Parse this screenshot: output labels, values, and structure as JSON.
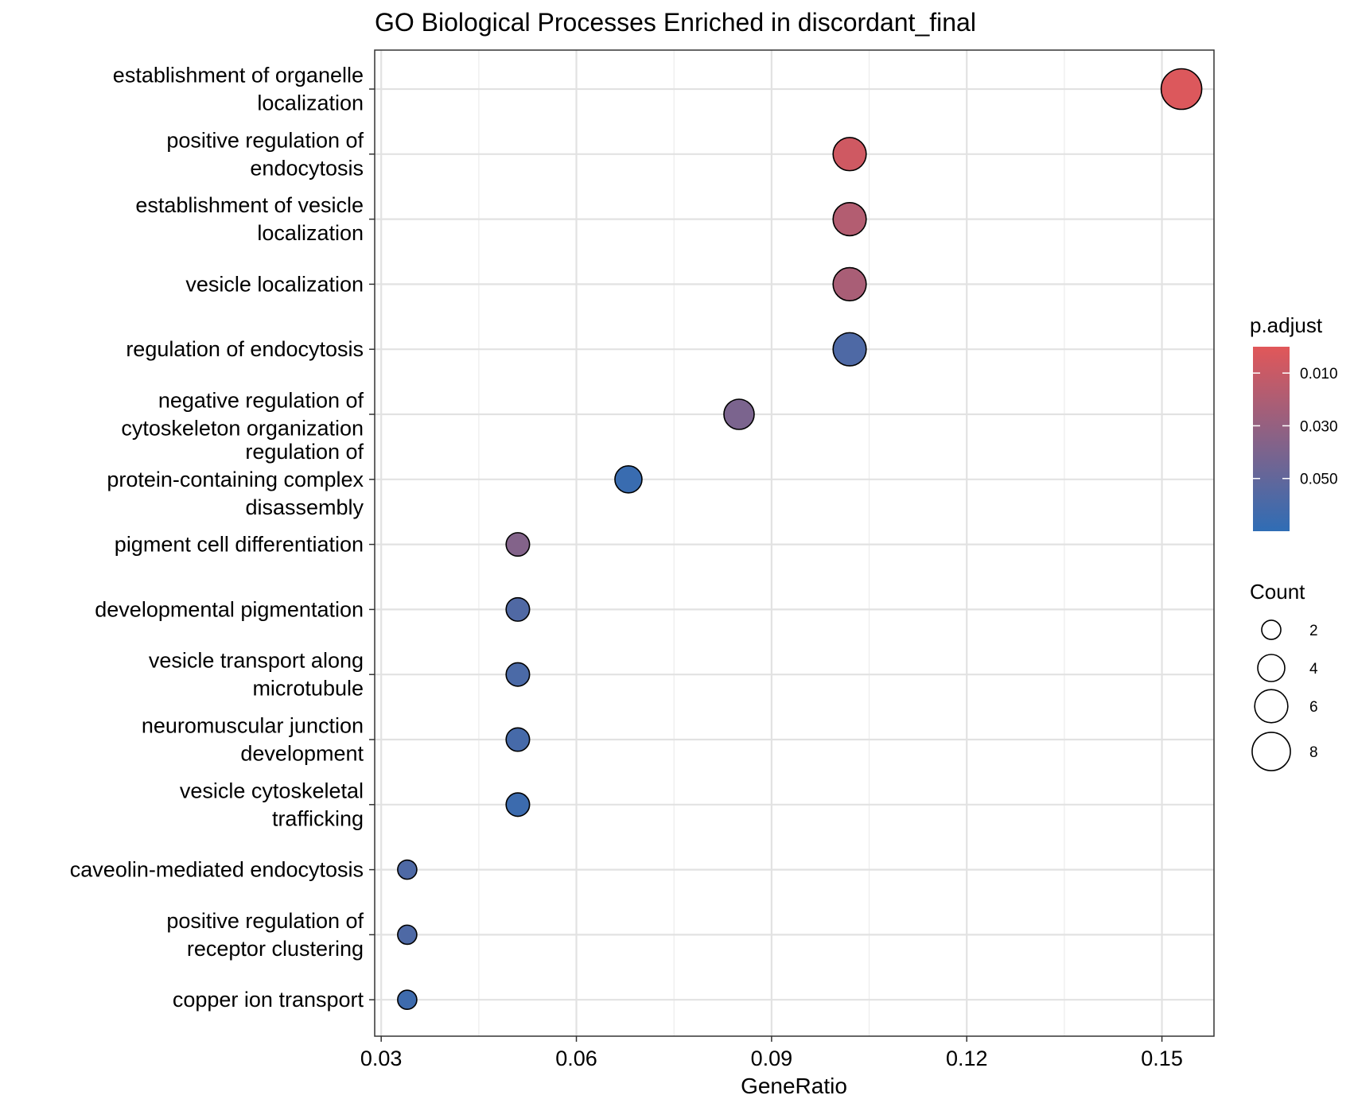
{
  "chart_data": {
    "type": "scatter",
    "title": "GO Biological Processes Enriched in discordant_final",
    "xlabel": "GeneRatio",
    "ylabel": "",
    "xlim": [
      0.029,
      0.158
    ],
    "xticks": [
      "0.03",
      "0.06",
      "0.09",
      "0.12",
      "0.15"
    ],
    "grid": true,
    "legend_position": "right",
    "categories": [
      [
        "establishment of organelle",
        "localization"
      ],
      [
        "positive regulation of",
        "endocytosis"
      ],
      [
        "establishment of vesicle",
        "localization"
      ],
      [
        "vesicle localization"
      ],
      [
        "regulation of endocytosis"
      ],
      [
        "negative regulation of",
        "cytoskeleton organization"
      ],
      [
        "regulation of",
        "protein-containing complex",
        "disassembly"
      ],
      [
        "pigment cell differentiation"
      ],
      [
        "developmental pigmentation"
      ],
      [
        "vesicle transport along",
        "microtubule"
      ],
      [
        "neuromuscular junction",
        "development"
      ],
      [
        "vesicle cytoskeletal",
        "trafficking"
      ],
      [
        "caveolin-mediated endocytosis"
      ],
      [
        "positive regulation of",
        "receptor clustering"
      ],
      [
        "copper ion transport"
      ]
    ],
    "points": [
      {
        "gene_ratio": 0.153,
        "count": 9,
        "p_adjust": 0.002
      },
      {
        "gene_ratio": 0.102,
        "count": 6,
        "p_adjust": 0.007
      },
      {
        "gene_ratio": 0.102,
        "count": 6,
        "p_adjust": 0.018
      },
      {
        "gene_ratio": 0.102,
        "count": 6,
        "p_adjust": 0.022
      },
      {
        "gene_ratio": 0.102,
        "count": 6,
        "p_adjust": 0.058
      },
      {
        "gene_ratio": 0.085,
        "count": 5,
        "p_adjust": 0.04
      },
      {
        "gene_ratio": 0.068,
        "count": 4,
        "p_adjust": 0.066
      },
      {
        "gene_ratio": 0.051,
        "count": 3,
        "p_adjust": 0.037
      },
      {
        "gene_ratio": 0.051,
        "count": 3,
        "p_adjust": 0.057
      },
      {
        "gene_ratio": 0.051,
        "count": 3,
        "p_adjust": 0.059
      },
      {
        "gene_ratio": 0.051,
        "count": 3,
        "p_adjust": 0.061
      },
      {
        "gene_ratio": 0.051,
        "count": 3,
        "p_adjust": 0.065
      },
      {
        "gene_ratio": 0.034,
        "count": 2,
        "p_adjust": 0.058
      },
      {
        "gene_ratio": 0.034,
        "count": 2,
        "p_adjust": 0.058
      },
      {
        "gene_ratio": 0.034,
        "count": 2,
        "p_adjust": 0.064
      }
    ],
    "color_legend": {
      "title": "p.adjust",
      "low_color": "#e15759",
      "high_color": "#2f6db5",
      "range": [
        0.0,
        0.07
      ],
      "ticks": [
        {
          "value": 0.01,
          "label": "0.010"
        },
        {
          "value": 0.03,
          "label": "0.030"
        },
        {
          "value": 0.05,
          "label": "0.050"
        }
      ]
    },
    "size_legend": {
      "title": "Count",
      "breaks": [
        {
          "value": 2,
          "label": "2"
        },
        {
          "value": 4,
          "label": "4"
        },
        {
          "value": 6,
          "label": "6"
        },
        {
          "value": 8,
          "label": "8"
        }
      ]
    }
  }
}
